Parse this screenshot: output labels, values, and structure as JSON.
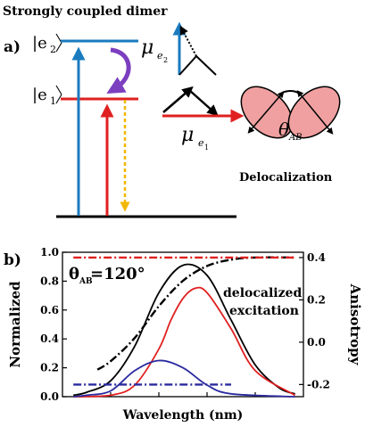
{
  "panel_a": {
    "title": "Strongly coupled dimer",
    "label": "a)",
    "state_e2": "|e",
    "state_e2_sub": "2",
    "state_e1": "|e",
    "state_e1_sub": "1",
    "mu_e2": "μ",
    "mu_e2_sub": "e",
    "mu_e2_subsub": "2",
    "mu_e1": "μ",
    "mu_e1_sub": "e",
    "mu_e1_subsub": "1",
    "theta": "θ",
    "theta_sub": "AB",
    "delocalization_label": "Delocalization",
    "colors": {
      "e2_level": "#1a7bbf",
      "e1_level": "#e02020",
      "relaxation": "#7b3fbf",
      "emission": "#f2b700",
      "lobes": "#f0a0a0"
    }
  },
  "panel_b": {
    "label": "b)",
    "theta_text": "θ",
    "theta_sub": "AB",
    "theta_value": "=120°",
    "annotation_line1": "delocalized",
    "annotation_line2": "excitation",
    "left_ylabel": "Normalized",
    "right_ylabel": "Anisotropy",
    "xlabel": "Wavelength (nm)"
  },
  "chart_data": {
    "type": "line",
    "xlabel": "Wavelength (nm)",
    "ylabel": "Normalized",
    "y2label": "Anisotropy",
    "x_ticks_labeled": false,
    "y_ticks": [
      "0.0",
      "0.2",
      "0.4",
      "0.6",
      "0.8",
      "1.0"
    ],
    "y2_ticks": [
      "-0.2",
      "0.0",
      "0.2",
      "0.4"
    ],
    "xlim": [
      0,
      10
    ],
    "ylim": [
      0,
      1.0
    ],
    "y2lim": [
      -0.2575,
      0.425
    ],
    "series": [
      {
        "axis": "left",
        "color": "#000000",
        "style": "solid",
        "x": [
          0.45,
          1,
          2,
          3,
          4,
          5,
          6,
          7,
          8,
          9,
          9.65
        ],
        "values": [
          0.01,
          0.03,
          0.11,
          0.35,
          0.72,
          0.91,
          0.84,
          0.53,
          0.22,
          0.06,
          0.02
        ]
      },
      {
        "axis": "left",
        "color": "#e02020",
        "style": "solid",
        "x": [
          0.45,
          2,
          3,
          4,
          4.5,
          5,
          5.5,
          6,
          7,
          8,
          9.65
        ],
        "values": [
          0.0,
          0.01,
          0.08,
          0.33,
          0.53,
          0.68,
          0.75,
          0.72,
          0.47,
          0.18,
          0.01
        ]
      },
      {
        "axis": "left",
        "color": "#2a2aa0",
        "style": "solid",
        "x": [
          0.45,
          1,
          2,
          3,
          4,
          5,
          6,
          7,
          9.65
        ],
        "values": [
          0.0,
          0.01,
          0.04,
          0.18,
          0.25,
          0.2,
          0.08,
          0.02,
          0.0
        ]
      },
      {
        "axis": "right",
        "color": "#000000",
        "style": "dashdot",
        "x": [
          1.45,
          2,
          3,
          4,
          5,
          6,
          7,
          8,
          9.65
        ],
        "values": [
          -0.13,
          -0.09,
          0.02,
          0.17,
          0.29,
          0.36,
          0.39,
          0.4,
          0.4
        ]
      },
      {
        "axis": "right",
        "color": "#e02020",
        "style": "dashdot",
        "x": [
          0.45,
          9.65
        ],
        "values": [
          0.4,
          0.4
        ]
      },
      {
        "axis": "right",
        "color": "#2a2aa0",
        "style": "dashdot",
        "x": [
          0.45,
          7.0
        ],
        "values": [
          -0.2,
          -0.2
        ]
      }
    ]
  }
}
